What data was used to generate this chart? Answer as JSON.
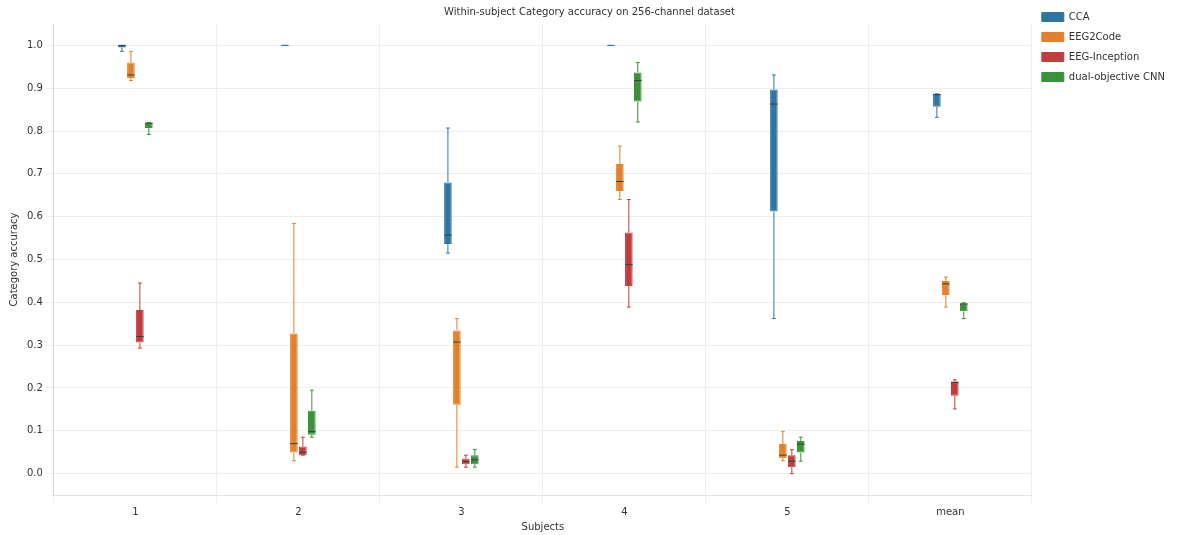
{
  "chart_data": {
    "type": "box",
    "title": "Within-subject Category accuracy on 256-channel dataset",
    "xlabel": "Subjects",
    "ylabel": "Category accuracy",
    "categories": [
      "1",
      "2",
      "3",
      "4",
      "5",
      "mean"
    ],
    "ylim": [
      -0.05,
      1.05
    ],
    "yticks": [
      {
        "value": 0,
        "label": "0.0"
      },
      {
        "value": 0.1,
        "label": "0.1"
      },
      {
        "value": 0.2,
        "label": "0.2"
      },
      {
        "value": 0.3,
        "label": "0.3"
      },
      {
        "value": 0.4,
        "label": "0.4"
      },
      {
        "value": 0.5,
        "label": "0.5"
      },
      {
        "value": 0.6,
        "label": "0.6"
      },
      {
        "value": 0.7,
        "label": "0.7"
      },
      {
        "value": 0.8,
        "label": "0.8"
      },
      {
        "value": 0.9,
        "label": "0.9"
      },
      {
        "value": 1,
        "label": "1.0"
      }
    ],
    "grid": true,
    "legend": "top right",
    "series": [
      {
        "name": "CCA",
        "color": "#3274a1",
        "boxes": [
          {
            "low": 0.986,
            "q1": 0.995,
            "median": 1.0,
            "q3": 1.0,
            "high": 1.0
          },
          {
            "low": 1.0,
            "q1": 1.0,
            "median": 1.0,
            "q3": 1.0,
            "high": 1.0
          },
          {
            "low": 0.515,
            "q1": 0.536,
            "median": 0.557,
            "q3": 0.68,
            "high": 0.807
          },
          {
            "low": 1.0,
            "q1": 1.0,
            "median": 1.0,
            "q3": 1.0,
            "high": 1.0
          },
          {
            "low": 0.362,
            "q1": 0.612,
            "median": 0.863,
            "q3": 0.897,
            "high": 0.931
          },
          {
            "low": 0.832,
            "q1": 0.857,
            "median": 0.885,
            "q3": 0.887,
            "high": 0.887
          }
        ]
      },
      {
        "name": "EEG2Code",
        "color": "#e1812c",
        "boxes": [
          {
            "low": 0.918,
            "q1": 0.924,
            "median": 0.931,
            "q3": 0.96,
            "high": 0.986
          },
          {
            "low": 0.03,
            "q1": 0.049,
            "median": 0.07,
            "q3": 0.327,
            "high": 0.584
          },
          {
            "low": 0.015,
            "q1": 0.161,
            "median": 0.307,
            "q3": 0.334,
            "high": 0.362
          },
          {
            "low": 0.64,
            "q1": 0.66,
            "median": 0.682,
            "q3": 0.723,
            "high": 0.765
          },
          {
            "low": 0.03,
            "q1": 0.036,
            "median": 0.043,
            "q3": 0.069,
            "high": 0.098
          },
          {
            "low": 0.389,
            "q1": 0.417,
            "median": 0.443,
            "q3": 0.45,
            "high": 0.459
          }
        ]
      },
      {
        "name": "EEG-Inception",
        "color": "#c03d3e",
        "boxes": [
          {
            "low": 0.293,
            "q1": 0.306,
            "median": 0.32,
            "q3": 0.382,
            "high": 0.445
          },
          {
            "low": 0.043,
            "q1": 0.043,
            "median": 0.05,
            "q3": 0.063,
            "high": 0.085
          },
          {
            "low": 0.015,
            "q1": 0.022,
            "median": 0.028,
            "q3": 0.035,
            "high": 0.043
          },
          {
            "low": 0.389,
            "q1": 0.438,
            "median": 0.488,
            "q3": 0.563,
            "high": 0.64
          },
          {
            "low": 0.0,
            "q1": 0.015,
            "median": 0.029,
            "q3": 0.043,
            "high": 0.056
          },
          {
            "low": 0.151,
            "q1": 0.182,
            "median": 0.213,
            "q3": 0.215,
            "high": 0.219
          }
        ]
      },
      {
        "name": "dual-objective CNN",
        "color": "#3a923a",
        "boxes": [
          {
            "low": 0.792,
            "q1": 0.807,
            "median": 0.818,
            "q3": 0.82,
            "high": 0.82
          },
          {
            "low": 0.085,
            "q1": 0.091,
            "median": 0.098,
            "q3": 0.147,
            "high": 0.195
          },
          {
            "low": 0.015,
            "q1": 0.022,
            "median": 0.032,
            "q3": 0.043,
            "high": 0.056
          },
          {
            "low": 0.821,
            "q1": 0.869,
            "median": 0.918,
            "q3": 0.937,
            "high": 0.96
          },
          {
            "low": 0.029,
            "q1": 0.049,
            "median": 0.069,
            "q3": 0.076,
            "high": 0.085
          },
          {
            "low": 0.362,
            "q1": 0.379,
            "median": 0.396,
            "q3": 0.398,
            "high": 0.399
          }
        ]
      }
    ]
  }
}
